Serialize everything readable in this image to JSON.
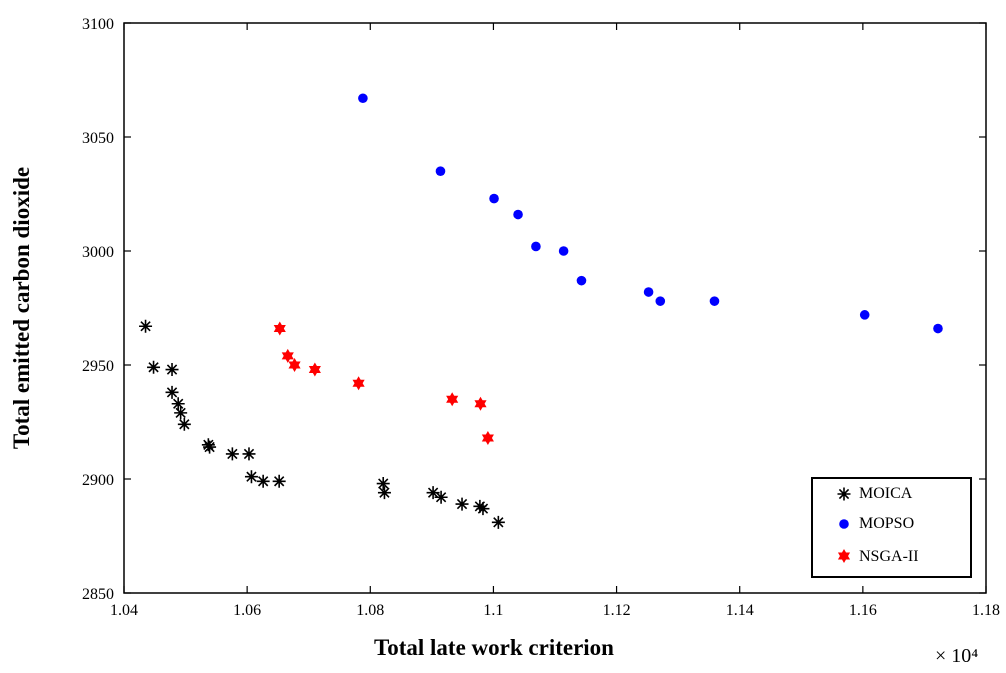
{
  "chart_data": {
    "type": "scatter",
    "title": "",
    "xlabel": "Total late work criterion",
    "ylabel": "Total emitted carbon dioxide",
    "x_exponent_label": "× 10⁴",
    "xlim": [
      1.04,
      1.18
    ],
    "ylim": [
      2850,
      3100
    ],
    "x_ticks": [
      "1.04",
      "1.06",
      "1.08",
      "1.1",
      "1.12",
      "1.14",
      "1.16",
      "1.18"
    ],
    "y_ticks": [
      "2850",
      "2900",
      "2950",
      "3000",
      "3050",
      "3100"
    ],
    "grid": false,
    "legend_position": "bottom-right",
    "series": [
      {
        "name": "MOICA",
        "marker": "asterisk",
        "color": "#000000",
        "points": [
          [
            1.0435,
            2967
          ],
          [
            1.0448,
            2949
          ],
          [
            1.0478,
            2948
          ],
          [
            1.0478,
            2938
          ],
          [
            1.0488,
            2933
          ],
          [
            1.0492,
            2929
          ],
          [
            1.0498,
            2924
          ],
          [
            1.0537,
            2915
          ],
          [
            1.0539,
            2914
          ],
          [
            1.0576,
            2911
          ],
          [
            1.0603,
            2911
          ],
          [
            1.0607,
            2901
          ],
          [
            1.0626,
            2899
          ],
          [
            1.0652,
            2899
          ],
          [
            1.0821,
            2898
          ],
          [
            1.0823,
            2894
          ],
          [
            1.0902,
            2894
          ],
          [
            1.0915,
            2892
          ],
          [
            1.0949,
            2889
          ],
          [
            1.0978,
            2888
          ],
          [
            1.0983,
            2887
          ],
          [
            1.1008,
            2881
          ]
        ]
      },
      {
        "name": "MOPSO",
        "marker": "circle",
        "color": "#0000ff",
        "points": [
          [
            1.0788,
            3067
          ],
          [
            1.0914,
            3035
          ],
          [
            1.1001,
            3023
          ],
          [
            1.104,
            3016
          ],
          [
            1.1069,
            3002
          ],
          [
            1.1114,
            3000
          ],
          [
            1.1143,
            2987
          ],
          [
            1.1252,
            2982
          ],
          [
            1.1271,
            2978
          ],
          [
            1.1359,
            2978
          ],
          [
            1.1603,
            2972
          ],
          [
            1.1722,
            2966
          ]
        ]
      },
      {
        "name": "NSGA-II",
        "marker": "hexagram",
        "color": "#ff0000",
        "points": [
          [
            1.0653,
            2966
          ],
          [
            1.0666,
            2954
          ],
          [
            1.0677,
            2950
          ],
          [
            1.071,
            2948
          ],
          [
            1.0781,
            2942
          ],
          [
            1.0933,
            2935
          ],
          [
            1.0979,
            2933
          ],
          [
            1.0991,
            2918
          ]
        ]
      }
    ]
  }
}
